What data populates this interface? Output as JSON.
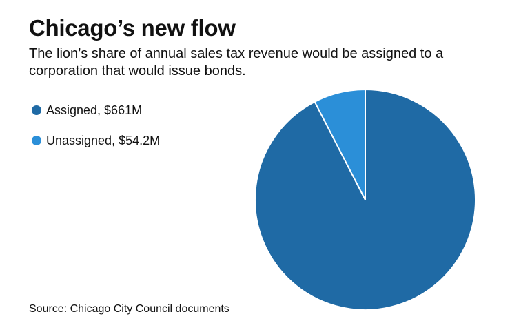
{
  "title": "Chicago’s new flow",
  "subtitle": "The lion’s share of annual sales tax revenue would be assigned to a corporation that would issue bonds.",
  "legend": {
    "items": [
      {
        "label": "Assigned, $661M",
        "color": "#1f6aa5"
      },
      {
        "label": "Unassigned, $54.2M",
        "color": "#2b8fd8"
      }
    ]
  },
  "source": "Source: Chicago City Council documents",
  "chart_data": {
    "type": "pie",
    "title": "Chicago’s new flow",
    "slices": [
      {
        "label": "Assigned",
        "value": 661,
        "unit": "$M",
        "color": "#1f6aa5"
      },
      {
        "label": "Unassigned",
        "value": 54.2,
        "unit": "$M",
        "color": "#2b8fd8"
      }
    ],
    "start_angle": "12 o'clock",
    "direction": "counter-clockwise for Unassigned slice",
    "legend_placement": "top-left"
  }
}
